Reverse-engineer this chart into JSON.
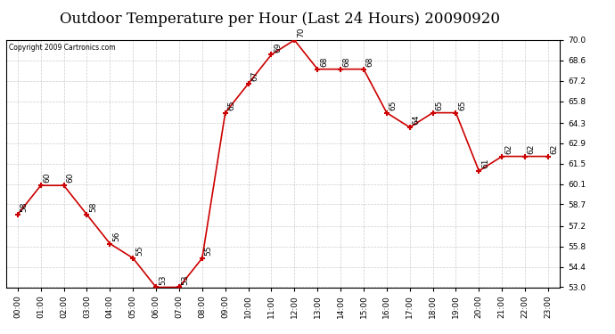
{
  "title": "Outdoor Temperature per Hour (Last 24 Hours) 20090920",
  "copyright": "Copyright 2009 Cartronics.com",
  "hours": [
    "00:00",
    "01:00",
    "02:00",
    "03:00",
    "04:00",
    "05:00",
    "06:00",
    "07:00",
    "08:00",
    "09:00",
    "10:00",
    "11:00",
    "12:00",
    "13:00",
    "14:00",
    "15:00",
    "16:00",
    "17:00",
    "18:00",
    "19:00",
    "20:00",
    "21:00",
    "22:00",
    "23:00"
  ],
  "temps": [
    58,
    60,
    60,
    58,
    56,
    55,
    53,
    53,
    55,
    65,
    67,
    69,
    70,
    68,
    68,
    68,
    65,
    64,
    65,
    65,
    61,
    62,
    62,
    62
  ],
  "ylim_min": 53.0,
  "ylim_max": 70.0,
  "yticks": [
    53.0,
    54.4,
    55.8,
    57.2,
    58.7,
    60.1,
    61.5,
    62.9,
    64.3,
    65.8,
    67.2,
    68.6,
    70.0
  ],
  "line_color": "#cc0000",
  "marker_color": "#cc0000",
  "bg_color": "#ffffff",
  "grid_color": "#cccccc",
  "title_fontsize": 12,
  "label_fontsize": 6.5,
  "annotation_fontsize": 6.5,
  "copyright_fontsize": 5.5
}
